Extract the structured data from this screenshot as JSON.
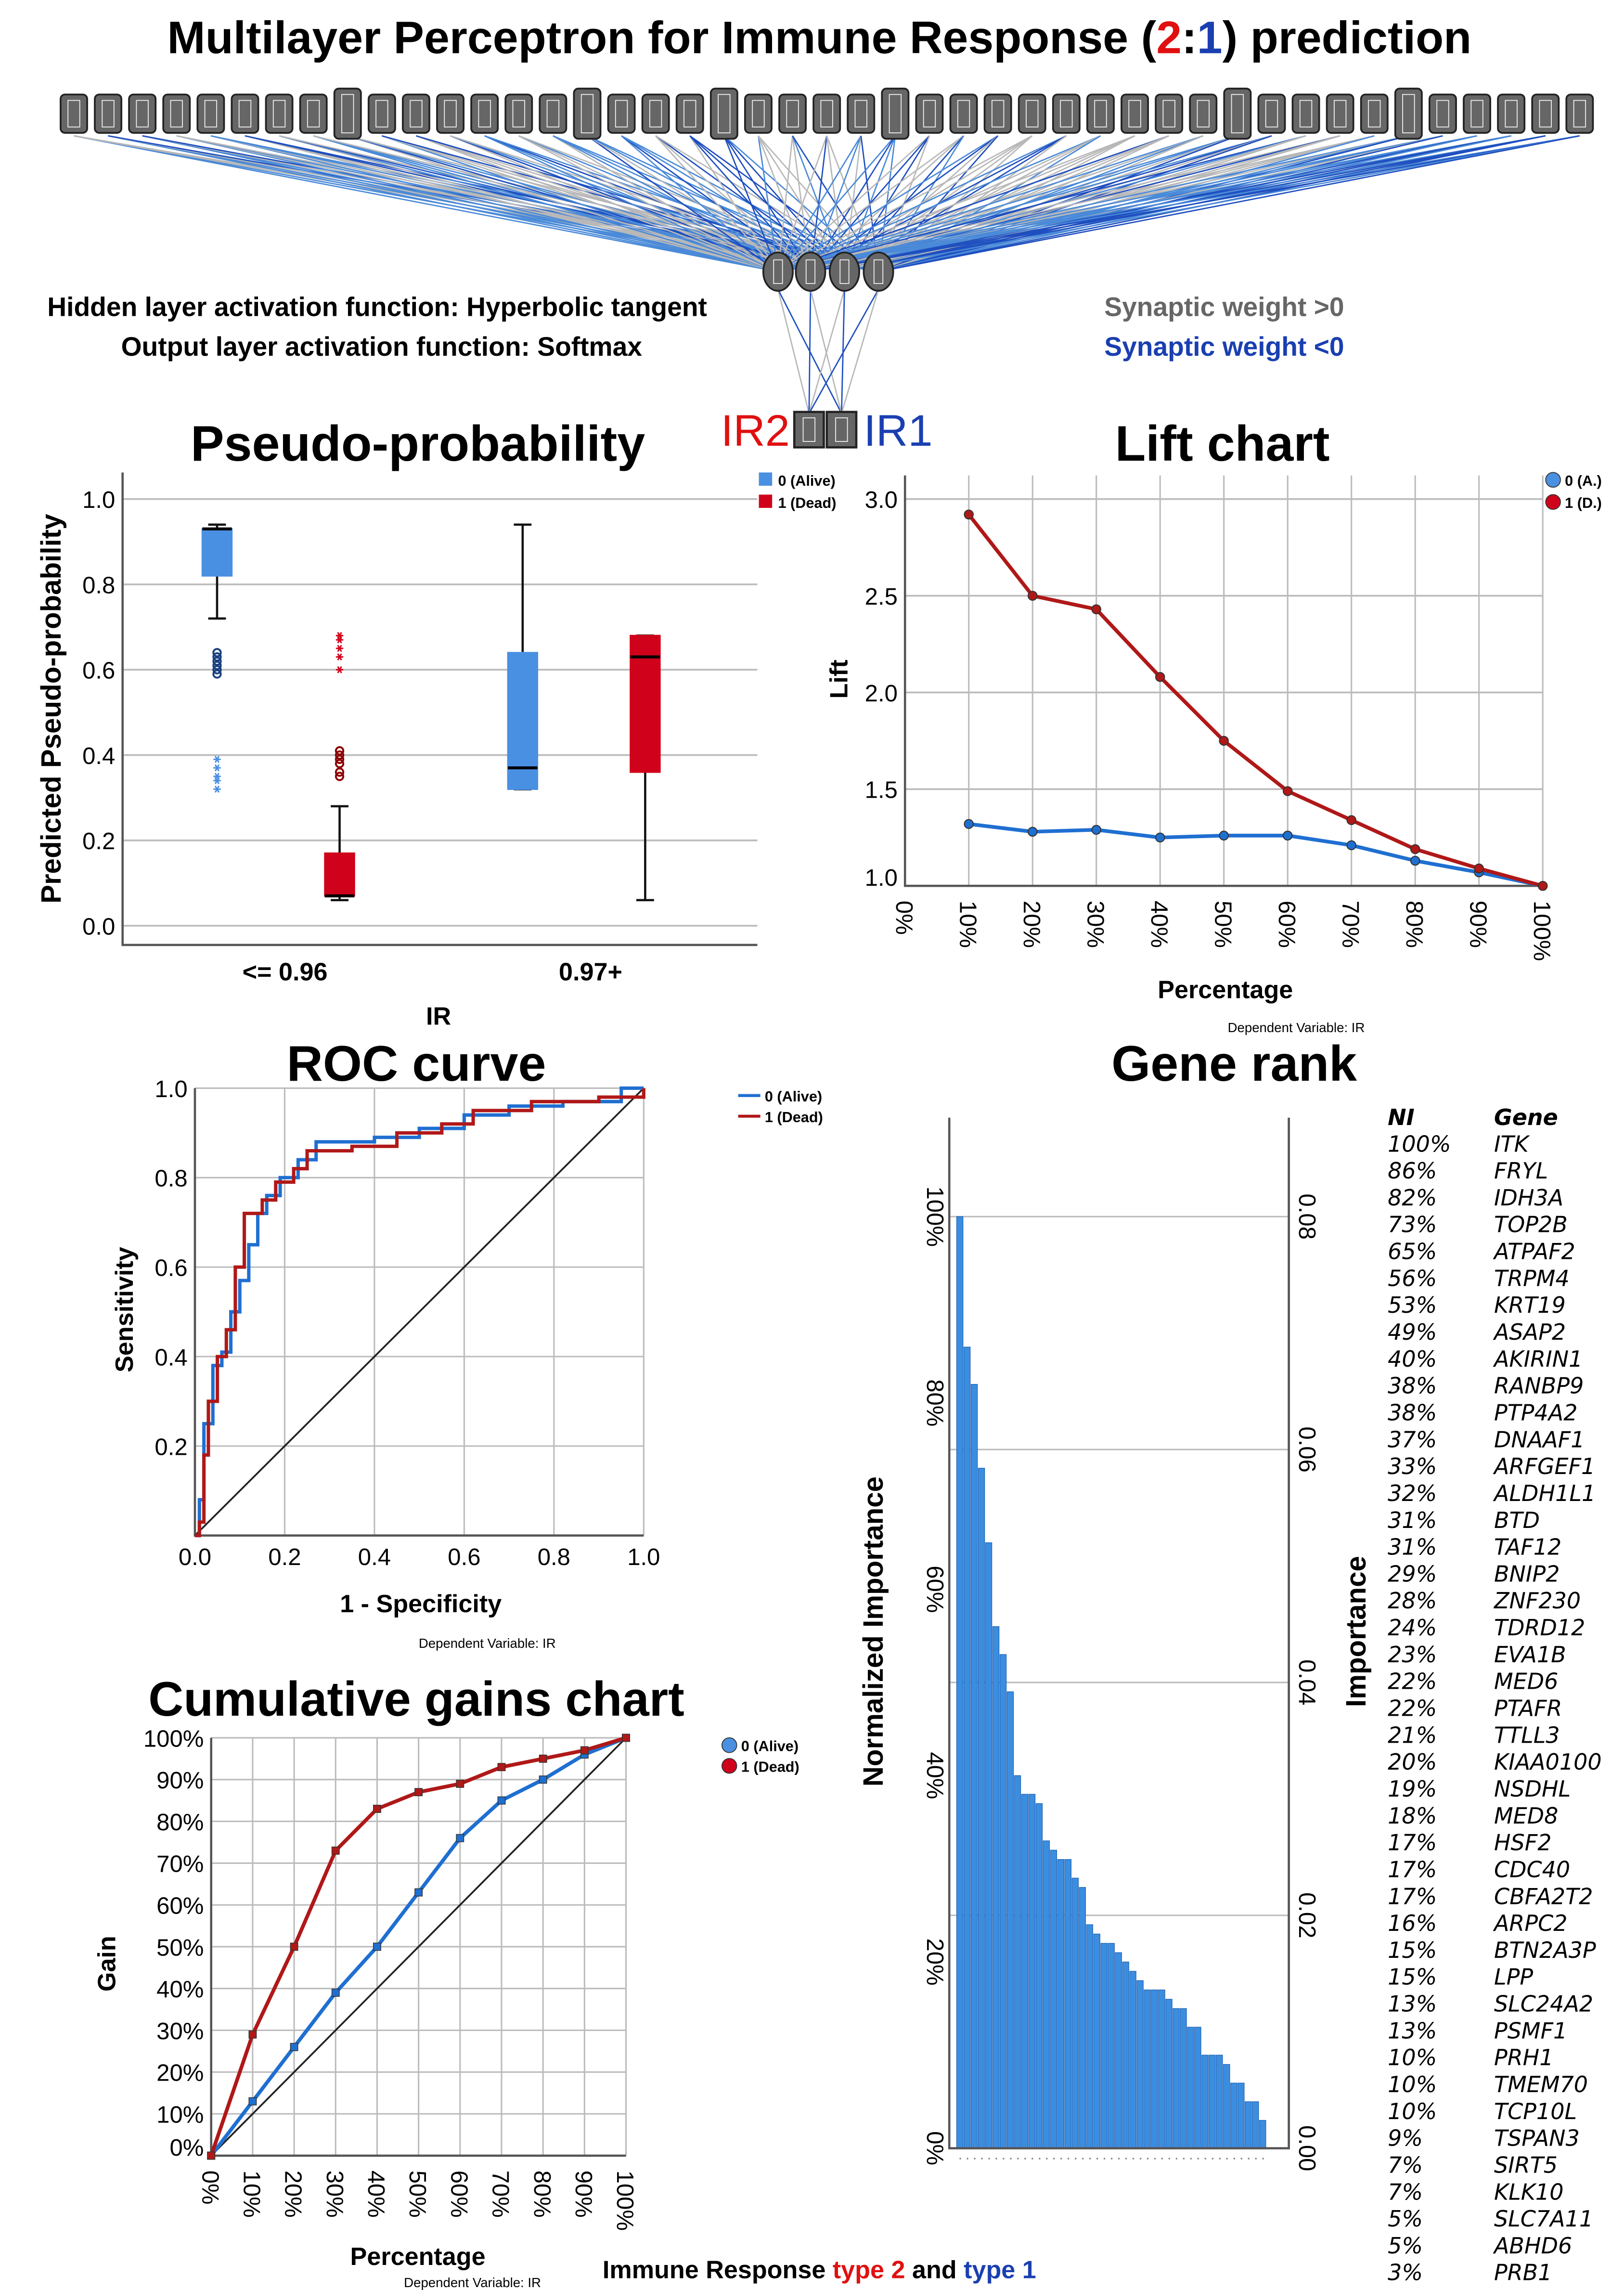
{
  "title": {
    "prefix": "Multilayer Perceptron for Immune Response (",
    "num2": "2",
    "colon": ":",
    "num1": "1",
    "suffix": ") prediction"
  },
  "network": {
    "input_node_count": 45,
    "hidden_node_count": 4,
    "hidden_activation": "Hidden layer activation function: Hyperbolic tangent",
    "output_activation": "Output layer activation function: Softmax",
    "weight_pos": "Synaptic weight >0",
    "weight_neg": "Synaptic weight <0",
    "out_left": "IR2",
    "out_right": "IR1",
    "colors": {
      "pos": "#b8b8b8",
      "neg": "#1f4fbf",
      "neg_light": "#4a8ad8",
      "ir2": "#e01010",
      "ir1": "#1a3fb0"
    }
  },
  "chart_data": [
    {
      "type": "box",
      "title": "Pseudo-probability",
      "ylabel": "Predicted Pseudo-probability",
      "xlabel": "IR",
      "ylim": [
        0,
        1
      ],
      "yticks": [
        "0.0",
        "0.2",
        "0.4",
        "0.6",
        "0.8",
        "1.0"
      ],
      "categories": [
        "<= 0.96",
        "0.97+"
      ],
      "legend": [
        "0 (Alive)",
        "1 (Dead)"
      ],
      "colors": [
        "#4a90e2",
        "#d0021b"
      ],
      "boxes": [
        {
          "cat": 0,
          "series": 0,
          "min": 0.72,
          "q1": 0.82,
          "median": 0.93,
          "q3": 0.93,
          "max": 0.94,
          "outliers_circle": [
            0.59,
            0.6,
            0.61,
            0.62,
            0.63,
            0.64
          ],
          "outliers_star": [
            0.32,
            0.34,
            0.35,
            0.37,
            0.39
          ]
        },
        {
          "cat": 0,
          "series": 1,
          "min": 0.06,
          "q1": 0.07,
          "median": 0.07,
          "q3": 0.17,
          "max": 0.28,
          "outliers_circle": [
            0.35,
            0.36,
            0.38,
            0.39,
            0.4,
            0.41
          ],
          "outliers_star": [
            0.6,
            0.63,
            0.65,
            0.67,
            0.68
          ]
        },
        {
          "cat": 1,
          "series": 0,
          "min": 0.32,
          "q1": 0.32,
          "median": 0.37,
          "q3": 0.64,
          "max": 0.94,
          "outliers_circle": [],
          "outliers_star": []
        },
        {
          "cat": 1,
          "series": 1,
          "min": 0.06,
          "q1": 0.36,
          "median": 0.63,
          "q3": 0.68,
          "max": 0.68,
          "outliers_circle": [],
          "outliers_star": []
        }
      ]
    },
    {
      "type": "line",
      "title": "Lift chart",
      "ylabel": "Lift",
      "xlabel": "Percentage",
      "note": "Dependent Variable: IR",
      "ylim": [
        1.0,
        3.0
      ],
      "yticks": [
        "1.0",
        "1.5",
        "2.0",
        "2.5",
        "3.0"
      ],
      "x": [
        10,
        20,
        30,
        40,
        50,
        60,
        70,
        80,
        90,
        100
      ],
      "xticks": [
        "0%",
        "10%",
        "20%",
        "30%",
        "40%",
        "50%",
        "60%",
        "70%",
        "80%",
        "90%",
        "100%"
      ],
      "series": [
        {
          "name": "0 (A.)",
          "color": "#1f6fd1",
          "values": [
            1.32,
            1.28,
            1.29,
            1.25,
            1.26,
            1.26,
            1.21,
            1.13,
            1.07,
            1.0
          ]
        },
        {
          "name": "1 (D.)",
          "color": "#b01818",
          "values": [
            2.92,
            2.5,
            2.43,
            2.08,
            1.75,
            1.49,
            1.34,
            1.19,
            1.09,
            1.0
          ]
        }
      ]
    },
    {
      "type": "line",
      "title": "ROC curve",
      "xlabel": "1 - Specificity",
      "ylabel": "Sensitivity",
      "note": "Dependent Variable: IR",
      "xticks": [
        "0.0",
        "0.2",
        "0.4",
        "0.6",
        "0.8",
        "1.0"
      ],
      "yticks": [
        "0.2",
        "0.4",
        "0.6",
        "0.8",
        "1.0"
      ],
      "series": [
        {
          "name": "0 (Alive)",
          "color": "#1f6fd1",
          "points": [
            [
              0,
              0
            ],
            [
              0.01,
              0
            ],
            [
              0.01,
              0.08
            ],
            [
              0.02,
              0.08
            ],
            [
              0.02,
              0.25
            ],
            [
              0.04,
              0.25
            ],
            [
              0.04,
              0.38
            ],
            [
              0.06,
              0.38
            ],
            [
              0.06,
              0.41
            ],
            [
              0.08,
              0.41
            ],
            [
              0.08,
              0.5
            ],
            [
              0.1,
              0.5
            ],
            [
              0.1,
              0.57
            ],
            [
              0.12,
              0.57
            ],
            [
              0.12,
              0.65
            ],
            [
              0.14,
              0.65
            ],
            [
              0.14,
              0.72
            ],
            [
              0.16,
              0.72
            ],
            [
              0.16,
              0.76
            ],
            [
              0.19,
              0.76
            ],
            [
              0.19,
              0.8
            ],
            [
              0.23,
              0.8
            ],
            [
              0.23,
              0.84
            ],
            [
              0.27,
              0.84
            ],
            [
              0.27,
              0.88
            ],
            [
              0.4,
              0.88
            ],
            [
              0.4,
              0.89
            ],
            [
              0.5,
              0.89
            ],
            [
              0.5,
              0.91
            ],
            [
              0.6,
              0.91
            ],
            [
              0.6,
              0.94
            ],
            [
              0.7,
              0.94
            ],
            [
              0.7,
              0.96
            ],
            [
              0.82,
              0.96
            ],
            [
              0.82,
              0.97
            ],
            [
              0.95,
              0.97
            ],
            [
              0.95,
              1.0
            ],
            [
              1,
              1
            ]
          ]
        },
        {
          "name": "1 (Dead)",
          "color": "#b01818",
          "points": [
            [
              0,
              0
            ],
            [
              0.01,
              0
            ],
            [
              0.01,
              0.03
            ],
            [
              0.02,
              0.03
            ],
            [
              0.02,
              0.18
            ],
            [
              0.03,
              0.18
            ],
            [
              0.03,
              0.3
            ],
            [
              0.05,
              0.3
            ],
            [
              0.05,
              0.4
            ],
            [
              0.07,
              0.4
            ],
            [
              0.07,
              0.46
            ],
            [
              0.09,
              0.46
            ],
            [
              0.09,
              0.6
            ],
            [
              0.11,
              0.6
            ],
            [
              0.11,
              0.72
            ],
            [
              0.15,
              0.72
            ],
            [
              0.15,
              0.75
            ],
            [
              0.18,
              0.75
            ],
            [
              0.18,
              0.79
            ],
            [
              0.22,
              0.79
            ],
            [
              0.22,
              0.82
            ],
            [
              0.25,
              0.82
            ],
            [
              0.25,
              0.86
            ],
            [
              0.35,
              0.86
            ],
            [
              0.35,
              0.87
            ],
            [
              0.45,
              0.87
            ],
            [
              0.45,
              0.9
            ],
            [
              0.55,
              0.9
            ],
            [
              0.55,
              0.92
            ],
            [
              0.62,
              0.92
            ],
            [
              0.62,
              0.95
            ],
            [
              0.75,
              0.95
            ],
            [
              0.75,
              0.97
            ],
            [
              0.9,
              0.97
            ],
            [
              0.9,
              0.98
            ],
            [
              1,
              0.98
            ],
            [
              1,
              1
            ]
          ]
        }
      ]
    },
    {
      "type": "bar",
      "title": "Gene rank",
      "ylabel": "Normalized Importance",
      "ylabel_right": "Importance",
      "yticks": [
        "0%",
        "20%",
        "40%",
        "60%",
        "80%",
        "100%"
      ],
      "yticks_right": [
        "0.00",
        "0.02",
        "0.04",
        "0.06",
        "0.08"
      ],
      "table_header": [
        "NI",
        "Gene"
      ],
      "categories": [
        "ITK",
        "FRYL",
        "IDH3A",
        "TOP2B",
        "ATPAF2",
        "TRPM4",
        "KRT19",
        "ASAP2",
        "AKIRIN1",
        "RANBP9",
        "PTP4A2",
        "DNAAF1",
        "ARFGEF1",
        "ALDH1L1",
        "BTD",
        "TAF12",
        "BNIP2",
        "ZNF230",
        "TDRD12",
        "EVA1B",
        "MED6",
        "PTAFR",
        "TTLL3",
        "KIAA0100",
        "NSDHL",
        "MED8",
        "HSF2",
        "CDC40",
        "CBFA2T2",
        "ARPC2",
        "BTN2A3P",
        "LPP",
        "SLC24A2",
        "PSMF1",
        "PRH1",
        "TMEM70",
        "TCP10L",
        "TSPAN3",
        "SIRT5",
        "KLK10",
        "SLC7A11",
        "ABHD6",
        "PRB1"
      ],
      "values": [
        100,
        86,
        82,
        73,
        65,
        56,
        53,
        49,
        40,
        38,
        38,
        37,
        33,
        32,
        31,
        31,
        29,
        28,
        24,
        23,
        22,
        22,
        21,
        20,
        19,
        18,
        17,
        17,
        17,
        16,
        15,
        15,
        13,
        13,
        10,
        10,
        10,
        9,
        7,
        7,
        5,
        5,
        3
      ],
      "labels": [
        "100%",
        "86%",
        "82%",
        "73%",
        "65%",
        "56%",
        "53%",
        "49%",
        "40%",
        "38%",
        "38%",
        "37%",
        "33%",
        "32%",
        "31%",
        "31%",
        "29%",
        "28%",
        "24%",
        "23%",
        "22%",
        "22%",
        "21%",
        "20%",
        "19%",
        "18%",
        "17%",
        "17%",
        "17%",
        "16%",
        "15%",
        "15%",
        "13%",
        "13%",
        "10%",
        "10%",
        "10%",
        "9%",
        "7%",
        "7%",
        "5%",
        "5%",
        "3%"
      ],
      "color": "#3b8de0"
    },
    {
      "type": "line",
      "title": "Cumulative gains chart",
      "ylabel": "Gain",
      "xlabel": "Percentage",
      "note": "Dependent Variable: IR",
      "x": [
        0,
        10,
        20,
        30,
        40,
        50,
        60,
        70,
        80,
        90,
        100
      ],
      "xticks": [
        "0%",
        "10%",
        "20%",
        "30%",
        "40%",
        "50%",
        "60%",
        "70%",
        "80%",
        "90%",
        "100%"
      ],
      "yticks": [
        "0%",
        "10%",
        "20%",
        "30%",
        "40%",
        "50%",
        "60%",
        "70%",
        "80%",
        "90%",
        "100%"
      ],
      "series": [
        {
          "name": "0 (Alive)",
          "color": "#1f6fd1",
          "values": [
            0,
            13,
            26,
            39,
            50,
            63,
            76,
            85,
            90,
            96,
            100
          ]
        },
        {
          "name": "1 (Dead)",
          "color": "#b01818",
          "values": [
            0,
            29,
            50,
            73,
            83,
            87,
            89,
            93,
            95,
            97,
            100
          ]
        }
      ]
    }
  ],
  "caption": {
    "prefix": "Immune Response ",
    "type2": "type 2",
    "and": " and ",
    "type1": "type 1"
  }
}
